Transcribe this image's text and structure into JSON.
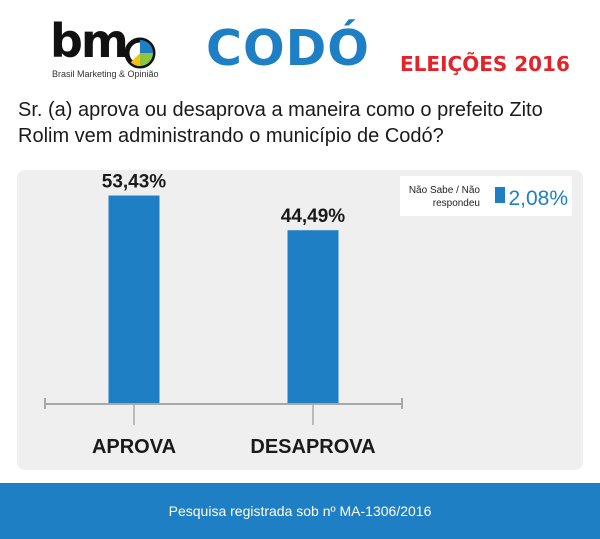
{
  "header": {
    "logo_text": "bm",
    "logo_subtitle": "Brasil Marketing & Opinião",
    "city": "CODÓ",
    "election": "ELEIÇÕES 2016"
  },
  "question": "Sr. (a) aprova ou desaprova a maneira como o prefeito Zito Rolim vem administrando o município de Codó?",
  "footer": {
    "text": "Pesquisa registrada sob nº MA-1306/2016"
  },
  "colors": {
    "bar": "#1f7fc4",
    "title_blue": "#1f7fc4",
    "title_red": "#e2242a",
    "footer_bg": "#1f7fc4",
    "panel_bg": "#efefef",
    "axis": "#a8a8a8",
    "pie_blue": "#1f7fc4",
    "pie_green": "#8cc63f",
    "pie_yellow": "#f4c20d"
  },
  "chart_data": {
    "type": "bar",
    "title": "",
    "xlabel": "",
    "ylabel": "",
    "categories": [
      "APROVA",
      "DESAPROVA"
    ],
    "values": [
      53.43,
      44.49
    ],
    "value_labels": [
      "53,43%",
      "44,49%"
    ],
    "ylim": [
      0,
      60
    ],
    "grid": false,
    "legend": {
      "position": "top-right",
      "label_line1": "Não Sabe / Não",
      "label_line2": "respondeu",
      "value": 2.08,
      "value_label": "2,08%"
    }
  }
}
